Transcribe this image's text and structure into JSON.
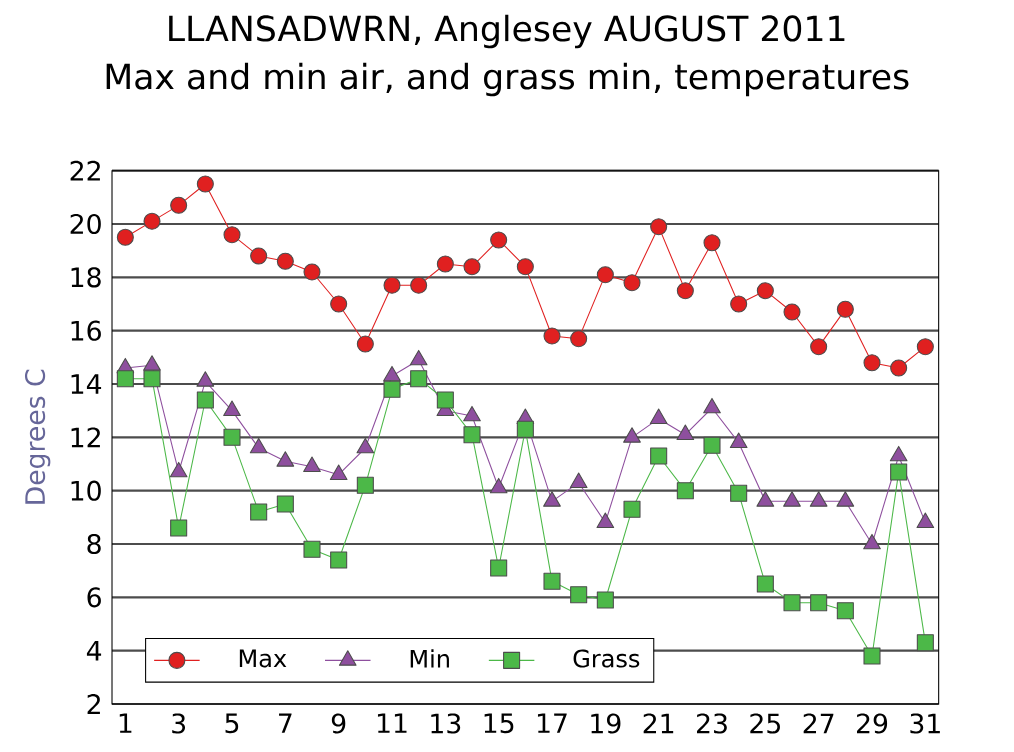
{
  "chart_data": {
    "type": "line",
    "title": "LLANSADWRN, Anglesey AUGUST 2011",
    "subtitle": "Max and min air, and grass min, temperatures",
    "ylabel": "Degrees C",
    "x": [
      1,
      2,
      3,
      4,
      5,
      6,
      7,
      8,
      9,
      10,
      11,
      12,
      13,
      14,
      15,
      16,
      17,
      18,
      19,
      20,
      21,
      22,
      23,
      24,
      25,
      26,
      27,
      28,
      29,
      30,
      31
    ],
    "series": [
      {
        "name": "Max",
        "color": "#e02020",
        "marker": "circle",
        "values": [
          19.5,
          20.1,
          20.7,
          21.5,
          19.6,
          18.8,
          18.6,
          18.2,
          17.0,
          15.5,
          17.7,
          17.7,
          18.5,
          18.4,
          19.4,
          18.4,
          15.8,
          15.7,
          18.1,
          17.8,
          19.9,
          17.5,
          19.3,
          17.0,
          17.5,
          16.7,
          15.4,
          16.8,
          14.8,
          14.6,
          15.4
        ]
      },
      {
        "name": "Min",
        "color": "#8e4f9e",
        "marker": "triangle",
        "values": [
          14.6,
          14.7,
          10.7,
          14.1,
          13.0,
          11.6,
          11.1,
          10.9,
          10.6,
          11.6,
          14.3,
          14.9,
          13.0,
          12.8,
          10.1,
          12.7,
          9.6,
          10.3,
          8.8,
          12.0,
          12.7,
          12.1,
          13.1,
          11.8,
          9.6,
          9.6,
          9.6,
          9.6,
          8.0,
          11.3,
          8.8
        ]
      },
      {
        "name": "Grass",
        "color": "#4cb848",
        "marker": "square",
        "values": [
          14.2,
          14.2,
          8.6,
          13.4,
          12.0,
          9.2,
          9.5,
          7.8,
          7.4,
          10.2,
          13.8,
          14.2,
          13.4,
          12.1,
          7.1,
          12.3,
          6.6,
          6.1,
          5.9,
          9.3,
          11.3,
          10.0,
          11.7,
          9.9,
          6.5,
          5.8,
          5.8,
          5.5,
          3.8,
          10.7,
          4.3
        ]
      }
    ],
    "xlim": [
      0.5,
      31.5
    ],
    "xticks": [
      1,
      3,
      5,
      7,
      9,
      11,
      13,
      15,
      17,
      19,
      21,
      23,
      25,
      27,
      29,
      31
    ],
    "ylim": [
      2,
      22
    ],
    "yticks": [
      2,
      4,
      6,
      8,
      10,
      12,
      14,
      16,
      18,
      20,
      22
    ],
    "grid": "y",
    "legend": "bottom left"
  }
}
